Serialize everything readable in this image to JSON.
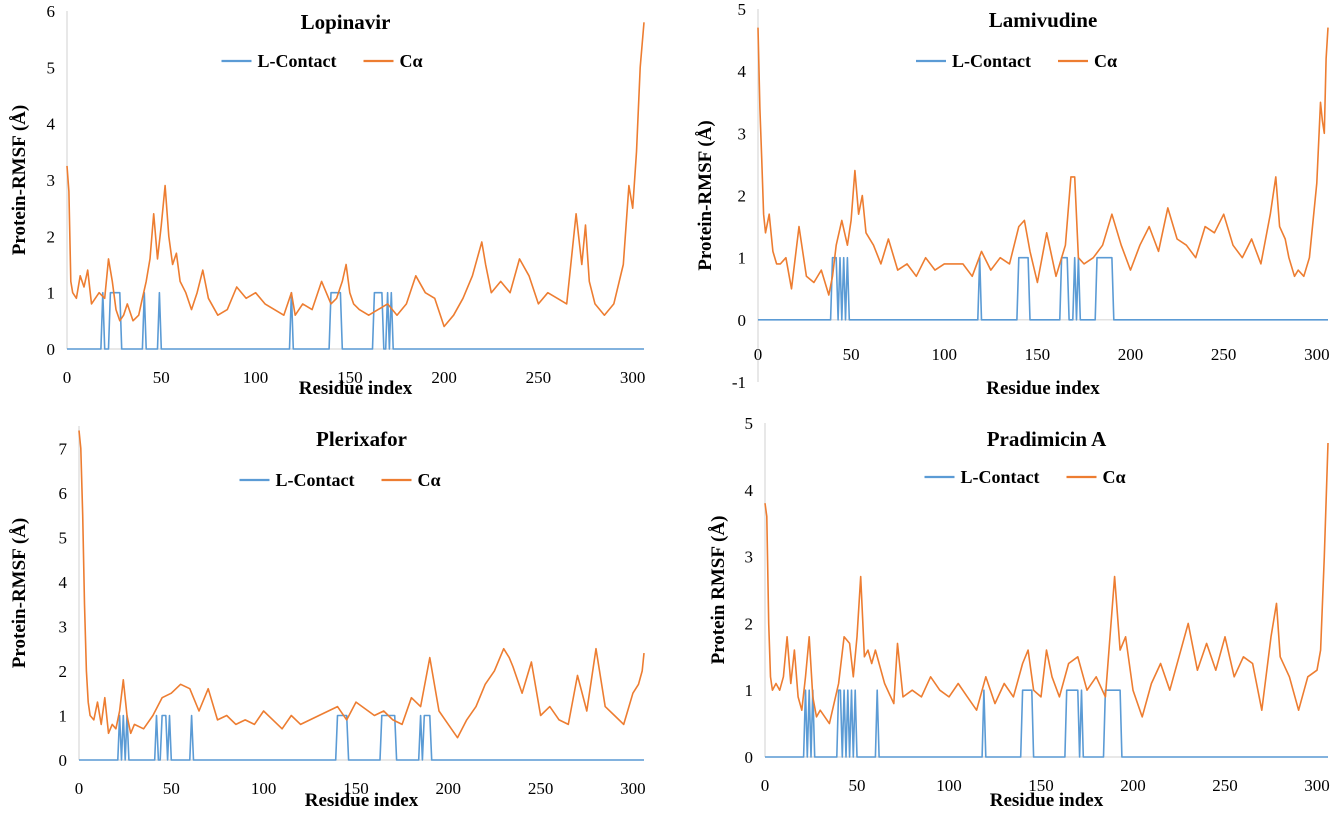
{
  "colors": {
    "contact": "#5B9BD5",
    "calpha": "#ED7D31",
    "axis": "#d9d9d9"
  },
  "chart_data": [
    {
      "type": "line",
      "title": "Lopinavir",
      "xlabel": "Residue index",
      "ylabel": "Protein-RMSF (Å)",
      "xlim": [
        0,
        306
      ],
      "ylim": [
        0,
        6
      ],
      "xticks": [
        "0",
        "50",
        "100",
        "150",
        "200",
        "250",
        "300"
      ],
      "yticks": [
        "0",
        "1",
        "2",
        "3",
        "4",
        "5",
        "6"
      ],
      "legend": "top-center",
      "series": [
        {
          "name": "L-Contact",
          "color": "#5B9BD5",
          "contacts": [
            19,
            23,
            24,
            25,
            26,
            27,
            28,
            41,
            49,
            119,
            140,
            141,
            142,
            143,
            144,
            145,
            163,
            164,
            165,
            166,
            167,
            170,
            172
          ]
        },
        {
          "name": "Cα",
          "color": "#ED7D31",
          "x": [
            0,
            1,
            2,
            3,
            5,
            7,
            9,
            11,
            13,
            15,
            17,
            20,
            22,
            24,
            26,
            28,
            30,
            32,
            35,
            38,
            40,
            42,
            44,
            46,
            48,
            50,
            52,
            54,
            56,
            58,
            60,
            63,
            66,
            69,
            72,
            75,
            80,
            85,
            90,
            95,
            100,
            105,
            110,
            115,
            119,
            121,
            125,
            130,
            135,
            140,
            143,
            146,
            148,
            150,
            152,
            155,
            160,
            165,
            170,
            175,
            180,
            185,
            190,
            195,
            200,
            205,
            210,
            215,
            220,
            222,
            225,
            230,
            235,
            240,
            245,
            250,
            255,
            260,
            265,
            270,
            273,
            275,
            277,
            280,
            285,
            290,
            295,
            298,
            300,
            302,
            304,
            306
          ],
          "y": [
            3.25,
            2.8,
            1.2,
            1.0,
            0.9,
            1.3,
            1.1,
            1.4,
            0.8,
            0.9,
            1.0,
            0.9,
            1.6,
            1.2,
            0.7,
            0.5,
            0.6,
            0.8,
            0.5,
            0.6,
            0.9,
            1.2,
            1.6,
            2.4,
            1.6,
            2.2,
            2.9,
            2.0,
            1.5,
            1.7,
            1.2,
            1.0,
            0.7,
            1.0,
            1.4,
            0.9,
            0.6,
            0.7,
            1.1,
            0.9,
            1.0,
            0.8,
            0.7,
            0.6,
            1.0,
            0.6,
            0.8,
            0.7,
            1.2,
            0.8,
            0.9,
            1.2,
            1.5,
            1.0,
            0.8,
            0.7,
            0.6,
            0.7,
            0.8,
            0.6,
            0.8,
            1.3,
            1.0,
            0.9,
            0.4,
            0.6,
            0.9,
            1.3,
            1.9,
            1.5,
            1.0,
            1.2,
            1.0,
            1.6,
            1.3,
            0.8,
            1.0,
            0.9,
            0.8,
            2.4,
            1.5,
            2.2,
            1.2,
            0.8,
            0.6,
            0.8,
            1.5,
            2.9,
            2.5,
            3.5,
            5.0,
            5.8
          ]
        }
      ]
    },
    {
      "type": "line",
      "title": "Lamivudine",
      "xlabel": "Residue index",
      "ylabel": "Protein-RMSF (Å)",
      "xlim": [
        0,
        306
      ],
      "ylim": [
        -1,
        5
      ],
      "xticks": [
        "0",
        "50",
        "100",
        "150",
        "200",
        "250",
        "300"
      ],
      "yticks": [
        "-1",
        "0",
        "1",
        "2",
        "3",
        "4",
        "5"
      ],
      "legend": "top-center",
      "series": [
        {
          "name": "L-Contact",
          "color": "#5B9BD5",
          "contacts": [
            40,
            41,
            42,
            44,
            46,
            48,
            119,
            140,
            141,
            142,
            143,
            144,
            145,
            163,
            164,
            165,
            166,
            170,
            172,
            182,
            183,
            184,
            185,
            186,
            187,
            188,
            189,
            190
          ]
        },
        {
          "name": "Cα",
          "color": "#ED7D31",
          "x": [
            0,
            1,
            2,
            3,
            4,
            6,
            8,
            10,
            12,
            15,
            18,
            22,
            26,
            30,
            34,
            38,
            40,
            42,
            45,
            48,
            50,
            52,
            54,
            56,
            58,
            62,
            66,
            70,
            75,
            80,
            85,
            90,
            95,
            100,
            110,
            115,
            120,
            125,
            130,
            135,
            140,
            143,
            146,
            150,
            155,
            160,
            165,
            168,
            170,
            172,
            175,
            180,
            185,
            190,
            195,
            200,
            205,
            210,
            215,
            220,
            225,
            230,
            235,
            240,
            245,
            250,
            255,
            260,
            265,
            270,
            275,
            278,
            280,
            283,
            285,
            288,
            290,
            293,
            296,
            300,
            302,
            303,
            304,
            305,
            306
          ],
          "y": [
            4.7,
            3.4,
            2.6,
            1.7,
            1.4,
            1.7,
            1.1,
            0.9,
            0.9,
            1.0,
            0.5,
            1.5,
            0.7,
            0.6,
            0.8,
            0.4,
            0.7,
            1.2,
            1.6,
            1.2,
            1.6,
            2.4,
            1.7,
            2.0,
            1.4,
            1.2,
            0.9,
            1.3,
            0.8,
            0.9,
            0.7,
            1.0,
            0.8,
            0.9,
            0.9,
            0.7,
            1.1,
            0.8,
            1.0,
            0.9,
            1.5,
            1.6,
            1.1,
            0.6,
            1.4,
            0.7,
            1.2,
            2.3,
            2.3,
            1.0,
            0.9,
            1.0,
            1.2,
            1.7,
            1.2,
            0.8,
            1.2,
            1.5,
            1.1,
            1.8,
            1.3,
            1.2,
            1.0,
            1.5,
            1.4,
            1.7,
            1.2,
            1.0,
            1.3,
            0.9,
            1.7,
            2.3,
            1.5,
            1.3,
            1.0,
            0.7,
            0.8,
            0.7,
            1.0,
            2.2,
            3.5,
            3.2,
            3.0,
            4.2,
            4.7
          ]
        }
      ]
    },
    {
      "type": "line",
      "title": "Plerixafor",
      "xlabel": "Residue index",
      "ylabel": "Protein-RMSF (Å)",
      "xlim": [
        0,
        306
      ],
      "ylim": [
        0,
        7.5
      ],
      "xticks": [
        "0",
        "50",
        "100",
        "150",
        "200",
        "250",
        "300"
      ],
      "yticks": [
        "0",
        "1",
        "2",
        "3",
        "4",
        "5",
        "6",
        "7"
      ],
      "legend": "top-center",
      "series": [
        {
          "name": "L-Contact",
          "color": "#5B9BD5",
          "contacts": [
            22,
            24,
            26,
            42,
            45,
            46,
            47,
            49,
            61,
            140,
            141,
            142,
            143,
            144,
            145,
            164,
            165,
            166,
            167,
            168,
            169,
            170,
            171,
            185,
            187,
            188,
            189,
            190
          ]
        },
        {
          "name": "Cα",
          "color": "#ED7D31",
          "x": [
            0,
            1,
            2,
            3,
            4,
            5,
            6,
            8,
            10,
            12,
            14,
            16,
            18,
            20,
            22,
            24,
            26,
            28,
            30,
            35,
            40,
            45,
            50,
            55,
            60,
            65,
            70,
            75,
            80,
            85,
            90,
            95,
            100,
            105,
            110,
            115,
            120,
            130,
            140,
            145,
            150,
            160,
            165,
            170,
            175,
            180,
            185,
            190,
            195,
            200,
            205,
            210,
            215,
            220,
            225,
            230,
            233,
            235,
            240,
            245,
            250,
            255,
            260,
            265,
            270,
            275,
            280,
            285,
            290,
            295,
            300,
            303,
            305,
            306
          ],
          "y": [
            7.4,
            7.0,
            5.5,
            3.5,
            2.0,
            1.3,
            1.0,
            0.9,
            1.3,
            0.8,
            1.4,
            0.6,
            0.8,
            0.7,
            1.1,
            1.8,
            1.0,
            0.6,
            0.8,
            0.7,
            1.0,
            1.4,
            1.5,
            1.7,
            1.6,
            1.1,
            1.6,
            0.9,
            1.0,
            0.8,
            0.9,
            0.8,
            1.1,
            0.9,
            0.7,
            1.0,
            0.8,
            1.0,
            1.2,
            0.9,
            1.3,
            1.0,
            1.1,
            0.9,
            0.8,
            1.4,
            1.2,
            2.3,
            1.1,
            0.8,
            0.5,
            0.9,
            1.2,
            1.7,
            2.0,
            2.5,
            2.3,
            2.1,
            1.5,
            2.2,
            1.0,
            1.2,
            0.9,
            0.8,
            1.9,
            1.1,
            2.5,
            1.2,
            1.0,
            0.8,
            1.5,
            1.7,
            2.0,
            2.4
          ]
        }
      ]
    },
    {
      "type": "line",
      "title": "Pradimicin A",
      "xlabel": "Residue index",
      "ylabel": "Protein RMSF (Å)",
      "xlim": [
        0,
        306
      ],
      "ylim": [
        0,
        5
      ],
      "xticks": [
        "0",
        "50",
        "100",
        "150",
        "200",
        "250",
        "300"
      ],
      "yticks": [
        "0",
        "1",
        "2",
        "3",
        "4",
        "5"
      ],
      "legend": "top-center",
      "series": [
        {
          "name": "L-Contact",
          "color": "#5B9BD5",
          "contacts": [
            22,
            24,
            26,
            40,
            41,
            43,
            45,
            47,
            49,
            61,
            119,
            140,
            141,
            142,
            143,
            144,
            145,
            164,
            165,
            166,
            167,
            168,
            169,
            170,
            172,
            185,
            186,
            187,
            188,
            189,
            190,
            191,
            192,
            193
          ]
        },
        {
          "name": "Cα",
          "color": "#ED7D31",
          "x": [
            0,
            1,
            2,
            3,
            4,
            6,
            8,
            10,
            12,
            14,
            16,
            18,
            20,
            22,
            24,
            26,
            28,
            30,
            35,
            40,
            43,
            46,
            48,
            50,
            52,
            54,
            56,
            58,
            60,
            65,
            70,
            72,
            75,
            80,
            85,
            90,
            95,
            100,
            105,
            110,
            115,
            120,
            125,
            130,
            135,
            140,
            143,
            146,
            150,
            153,
            156,
            160,
            165,
            170,
            175,
            180,
            185,
            190,
            193,
            196,
            200,
            205,
            210,
            215,
            220,
            225,
            230,
            235,
            240,
            245,
            250,
            255,
            260,
            265,
            270,
            275,
            278,
            280,
            285,
            290,
            295,
            300,
            302,
            304,
            306
          ],
          "y": [
            3.8,
            3.6,
            2.0,
            1.2,
            1.0,
            1.1,
            1.0,
            1.2,
            1.8,
            1.1,
            1.6,
            0.9,
            0.7,
            1.2,
            1.8,
            0.9,
            0.6,
            0.7,
            0.5,
            1.1,
            1.8,
            1.7,
            1.2,
            1.8,
            2.7,
            1.5,
            1.6,
            1.4,
            1.6,
            1.1,
            0.8,
            1.7,
            0.9,
            1.0,
            0.9,
            1.2,
            1.0,
            0.9,
            1.1,
            0.9,
            0.7,
            1.2,
            0.8,
            1.1,
            0.9,
            1.4,
            1.6,
            1.0,
            0.9,
            1.6,
            1.2,
            0.9,
            1.4,
            1.5,
            1.0,
            1.2,
            0.9,
            2.7,
            1.6,
            1.8,
            1.0,
            0.6,
            1.1,
            1.4,
            1.0,
            1.5,
            2.0,
            1.3,
            1.7,
            1.3,
            1.8,
            1.2,
            1.5,
            1.4,
            0.7,
            1.8,
            2.3,
            1.5,
            1.2,
            0.7,
            1.2,
            1.3,
            1.6,
            3.0,
            4.7
          ]
        }
      ]
    }
  ]
}
